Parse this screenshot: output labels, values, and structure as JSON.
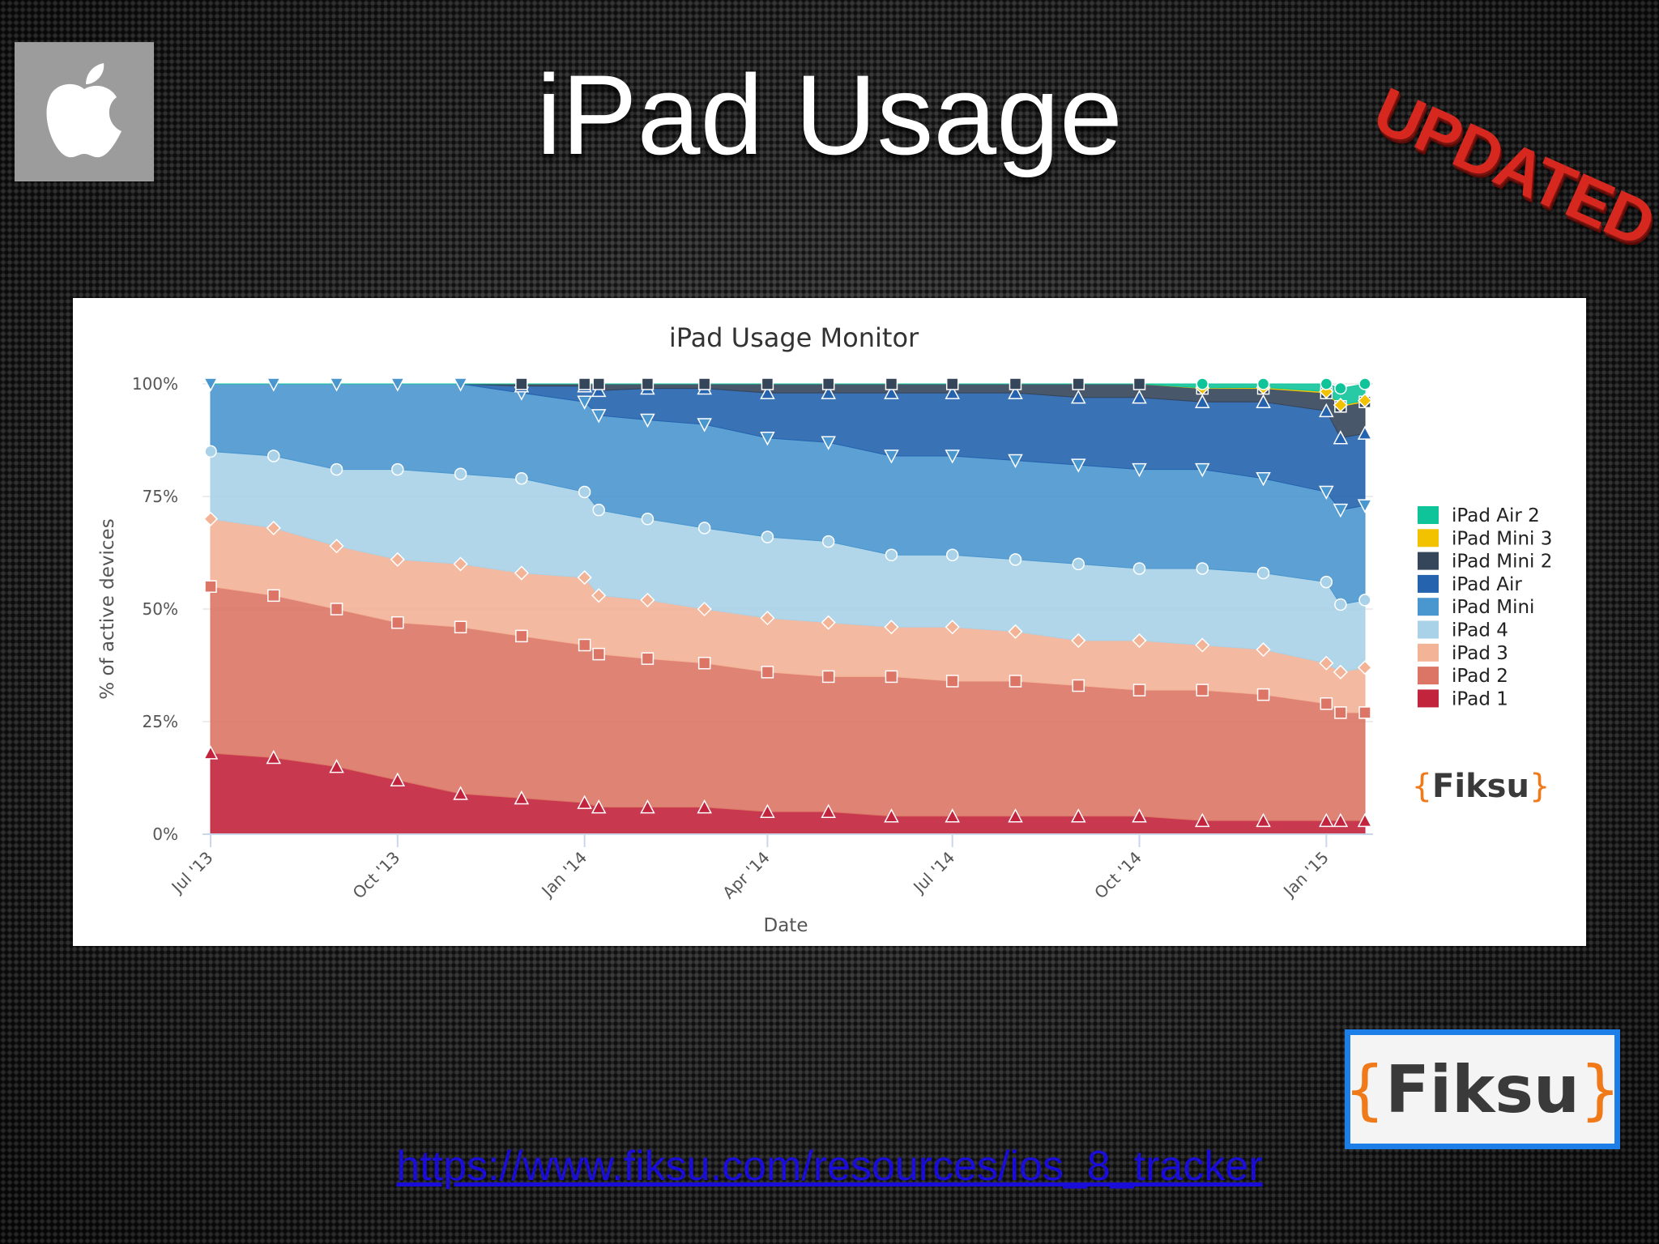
{
  "slide": {
    "title": "iPad Usage",
    "stamp": "UPDATED",
    "url": "https://www.fiksu.com/resources/ios_8_tracker",
    "logo_brace_open": "{",
    "logo_word": "Fiksu",
    "logo_brace_close": "}"
  },
  "icons": {
    "corner_logo": "apple-logo-icon"
  },
  "colors": {
    "iPad Air 2": "#10c49a",
    "iPad Mini 3": "#f2c200",
    "iPad Mini 2": "#35455a",
    "iPad Air": "#2563ae",
    "iPad Mini": "#4a96cf",
    "iPad 4": "#a9d2e8",
    "iPad 3": "#f3b397",
    "iPad 2": "#dc7565",
    "iPad 1": "#c2233d"
  },
  "chart_data": {
    "type": "area",
    "stacked": true,
    "percent": true,
    "title": "iPad Usage Monitor",
    "xlabel": "Date",
    "ylabel": "% of active devices",
    "x_ticks": [
      "Jul '13",
      "Oct '13",
      "Jan '14",
      "Apr '14",
      "Jul '14",
      "Oct '14",
      "Jan '15"
    ],
    "y_ticks": [
      "0%",
      "25%",
      "50%",
      "75%",
      "100%"
    ],
    "ylim": [
      0,
      100
    ],
    "grid": true,
    "legend_position": "right",
    "legend_logo": "Fiksu",
    "x": [
      "2013-07-01",
      "2013-08-01",
      "2013-09-01",
      "2013-10-01",
      "2013-11-01",
      "2013-12-01",
      "2014-01-01",
      "2014-01-08",
      "2014-02-01",
      "2014-03-01",
      "2014-04-01",
      "2014-05-01",
      "2014-06-01",
      "2014-07-01",
      "2014-08-01",
      "2014-09-01",
      "2014-10-01",
      "2014-11-01",
      "2014-12-01",
      "2015-01-01",
      "2015-01-08",
      "2015-01-20"
    ],
    "series": [
      {
        "name": "iPad 1",
        "values": [
          18,
          17,
          15,
          12,
          9,
          8,
          7,
          6,
          6,
          6,
          5,
          5,
          4,
          4,
          4,
          4,
          4,
          3,
          3,
          3,
          3,
          3
        ]
      },
      {
        "name": "iPad 2",
        "values": [
          37,
          36,
          35,
          35,
          37,
          36,
          35,
          34,
          33,
          32,
          31,
          30,
          31,
          30,
          30,
          29,
          28,
          29,
          28,
          26,
          24,
          24
        ]
      },
      {
        "name": "iPad 3",
        "values": [
          15,
          15,
          14,
          14,
          14,
          14,
          15,
          13,
          13,
          12,
          12,
          12,
          11,
          12,
          11,
          10,
          11,
          10,
          10,
          9,
          9,
          10
        ]
      },
      {
        "name": "iPad 4",
        "values": [
          15,
          16,
          17,
          20,
          20,
          21,
          19,
          19,
          18,
          18,
          18,
          18,
          16,
          16,
          16,
          17,
          16,
          17,
          17,
          18,
          15,
          15
        ]
      },
      {
        "name": "iPad Mini",
        "values": [
          15,
          16,
          19,
          19,
          20,
          19,
          20,
          21,
          22,
          23,
          22,
          22,
          22,
          22,
          22,
          22,
          22,
          22,
          21,
          20,
          21,
          21
        ]
      },
      {
        "name": "iPad Air",
        "values": [
          0,
          0,
          0,
          0,
          0,
          1.5,
          3.5,
          5.5,
          7,
          8,
          10,
          11,
          14,
          14,
          15,
          15,
          16,
          15,
          17,
          18,
          16,
          16
        ]
      },
      {
        "name": "iPad Mini 2",
        "values": [
          0,
          0,
          0,
          0,
          0,
          0.5,
          0.5,
          1.5,
          1,
          1,
          2,
          2,
          2,
          2,
          2,
          3,
          3,
          3,
          3,
          4,
          7,
          7
        ]
      },
      {
        "name": "iPad Mini 3",
        "values": [
          0,
          0,
          0,
          0,
          0,
          0,
          0,
          0,
          0,
          0,
          0,
          0,
          0,
          0,
          0,
          0,
          0,
          0.1,
          0.2,
          0.3,
          0.3,
          0.3
        ]
      },
      {
        "name": "iPad Air 2",
        "values": [
          0,
          0,
          0,
          0,
          0,
          0,
          0,
          0,
          0,
          0,
          0,
          0,
          0,
          0,
          0,
          0,
          0,
          0.9,
          0.8,
          1.7,
          3.7,
          3.7
        ]
      }
    ]
  }
}
